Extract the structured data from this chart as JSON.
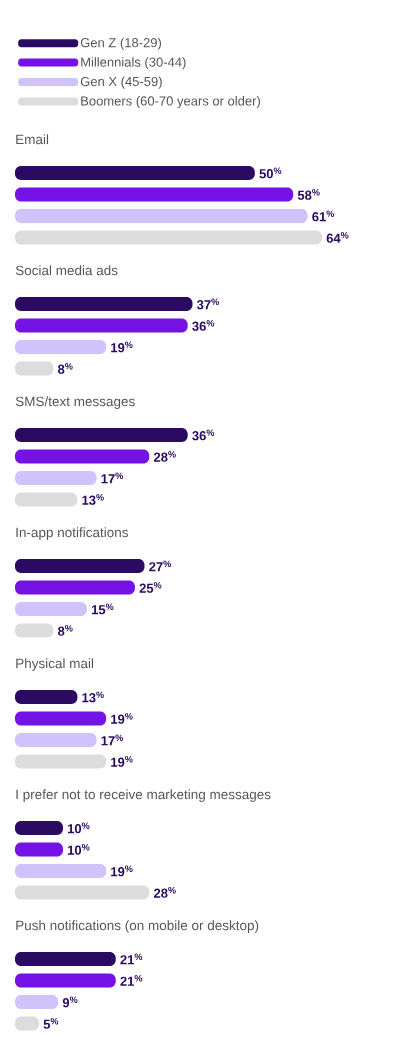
{
  "chart_data": {
    "type": "bar",
    "orientation": "horizontal",
    "legend": "top left",
    "categories": [
      "Email",
      "Social media ads",
      "SMS/text messages",
      "In-app notifications",
      "Physical mail",
      "I prefer not to receive marketing messages",
      "Push notifications (on mobile or desktop)"
    ],
    "series": [
      {
        "name": "Gen Z (18-29)",
        "color": "#2b0b61",
        "values": [
          50,
          37,
          36,
          27,
          13,
          10,
          21
        ],
        "value_labels": [
          "50$^{%}$",
          "37$^{%}$",
          "36$^{%}$",
          "27$^{%}$",
          "13$^{%}$",
          "10$^{%}$",
          "21$^{%}$"
        ]
      },
      {
        "name": "Millennials (30-44)",
        "color": "#7512e6",
        "values": [
          58,
          36,
          28,
          25,
          19,
          10,
          21
        ],
        "value_labels": [
          "58$^{%}$",
          "36$^{%}$",
          "28$^{%}$",
          "25$^{%}$",
          "19$^{%}$",
          "10$^{%}$",
          "21$^{%}$"
        ]
      },
      {
        "name": "Gen X (45-59)",
        "color": "#d0c2fb",
        "values": [
          61,
          19,
          17,
          15,
          17,
          19,
          9
        ],
        "value_labels": [
          "61$^{%}$",
          "19$^{%}$",
          "17$^{%}$",
          "15$^{%}$",
          "17$^{%}$",
          "19$^{%}$",
          "9$^{%}$"
        ]
      },
      {
        "name": "Boomers (60-70 years or older)",
        "color": "#dcdcdc",
        "values": [
          64,
          8,
          13,
          8,
          19,
          28,
          5
        ],
        "value_labels": [
          "64$^{%}$",
          "8$^{%}$",
          "13$^{%}$",
          "8$^{%}$",
          "19$^{%}$",
          "28$^{%}$",
          "5$^{%}$"
        ]
      }
    ]
  }
}
